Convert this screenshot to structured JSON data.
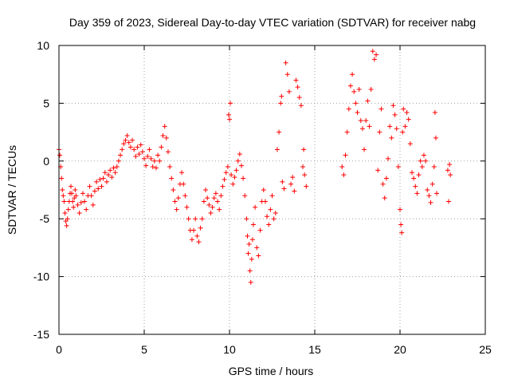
{
  "chart_data": {
    "type": "scatter",
    "title": "Day 359 of 2023, Sidereal Day-to-day VTEC variation (SDTVAR) for receiver nabg",
    "xlabel": "GPS time / hours",
    "ylabel": "SDTVAR / TECUs",
    "xlim": [
      0,
      25
    ],
    "ylim": [
      -15,
      10
    ],
    "x_ticks": [
      0,
      5,
      10,
      15,
      20,
      25
    ],
    "y_ticks": [
      -15,
      -10,
      -5,
      0,
      5,
      10
    ],
    "x_tick_labels": [
      "0",
      "5",
      "10",
      "15",
      "20",
      "25"
    ],
    "y_tick_labels": [
      "-15",
      "-10",
      "-5",
      "0",
      "5",
      "10"
    ],
    "grid": true,
    "marker": "+",
    "color": "#ff0000",
    "series": [
      {
        "name": "SDTVAR",
        "points": [
          [
            0.0,
            1.0
          ],
          [
            0.05,
            0.5
          ],
          [
            0.1,
            -0.5
          ],
          [
            0.15,
            -1.5
          ],
          [
            0.2,
            -2.5
          ],
          [
            0.25,
            -3.0
          ],
          [
            0.3,
            -3.5
          ],
          [
            0.35,
            -4.5
          ],
          [
            0.4,
            -5.2
          ],
          [
            0.45,
            -5.6
          ],
          [
            0.5,
            -5.0
          ],
          [
            0.55,
            -4.2
          ],
          [
            0.6,
            -3.5
          ],
          [
            0.65,
            -2.8
          ],
          [
            0.7,
            -2.2
          ],
          [
            0.75,
            -2.8
          ],
          [
            0.8,
            -3.5
          ],
          [
            0.85,
            -4.0
          ],
          [
            0.9,
            -3.2
          ],
          [
            0.95,
            -2.5
          ],
          [
            1.0,
            -3.0
          ],
          [
            1.1,
            -3.8
          ],
          [
            1.2,
            -4.5
          ],
          [
            1.3,
            -3.6
          ],
          [
            1.4,
            -2.8
          ],
          [
            1.5,
            -3.5
          ],
          [
            1.6,
            -4.2
          ],
          [
            1.7,
            -3.0
          ],
          [
            1.8,
            -2.2
          ],
          [
            1.9,
            -3.0
          ],
          [
            2.0,
            -3.8
          ],
          [
            2.1,
            -2.6
          ],
          [
            2.2,
            -1.8
          ],
          [
            2.3,
            -2.4
          ],
          [
            2.4,
            -1.6
          ],
          [
            2.5,
            -2.2
          ],
          [
            2.6,
            -1.5
          ],
          [
            2.7,
            -1.0
          ],
          [
            2.8,
            -1.8
          ],
          [
            2.9,
            -1.2
          ],
          [
            3.0,
            -0.8
          ],
          [
            3.1,
            -1.4
          ],
          [
            3.2,
            -0.6
          ],
          [
            3.3,
            -1.0
          ],
          [
            3.4,
            -0.5
          ],
          [
            3.5,
            0.0
          ],
          [
            3.6,
            0.5
          ],
          [
            3.7,
            1.0
          ],
          [
            3.8,
            1.5
          ],
          [
            3.9,
            1.8
          ],
          [
            4.0,
            2.2
          ],
          [
            4.1,
            1.6
          ],
          [
            4.2,
            1.2
          ],
          [
            4.3,
            1.8
          ],
          [
            4.4,
            1.0
          ],
          [
            4.5,
            0.4
          ],
          [
            4.6,
            1.2
          ],
          [
            4.7,
            0.6
          ],
          [
            4.8,
            1.4
          ],
          [
            4.9,
            0.8
          ],
          [
            5.0,
            0.2
          ],
          [
            5.1,
            -0.4
          ],
          [
            5.2,
            0.4
          ],
          [
            5.3,
            1.0
          ],
          [
            5.4,
            0.2
          ],
          [
            5.5,
            -0.5
          ],
          [
            5.6,
            0.0
          ],
          [
            5.7,
            -0.6
          ],
          [
            5.8,
            0.5
          ],
          [
            5.9,
            0.0
          ],
          [
            6.0,
            1.2
          ],
          [
            6.1,
            2.2
          ],
          [
            6.2,
            3.0
          ],
          [
            6.3,
            2.0
          ],
          [
            6.4,
            0.8
          ],
          [
            6.5,
            -0.5
          ],
          [
            6.6,
            -1.5
          ],
          [
            6.7,
            -2.5
          ],
          [
            6.8,
            -3.5
          ],
          [
            6.9,
            -4.2
          ],
          [
            7.0,
            -3.2
          ],
          [
            7.1,
            -2.0
          ],
          [
            7.2,
            -1.0
          ],
          [
            7.3,
            -2.0
          ],
          [
            7.4,
            -3.0
          ],
          [
            7.5,
            -4.0
          ],
          [
            7.6,
            -5.0
          ],
          [
            7.7,
            -6.0
          ],
          [
            7.8,
            -6.8
          ],
          [
            7.9,
            -6.0
          ],
          [
            8.0,
            -5.0
          ],
          [
            8.1,
            -6.5
          ],
          [
            8.2,
            -7.0
          ],
          [
            8.3,
            -5.8
          ],
          [
            8.4,
            -5.0
          ],
          [
            8.5,
            -3.5
          ],
          [
            8.6,
            -2.5
          ],
          [
            8.7,
            -3.2
          ],
          [
            8.8,
            -3.8
          ],
          [
            8.9,
            -4.5
          ],
          [
            9.0,
            -4.0
          ],
          [
            9.1,
            -3.2
          ],
          [
            9.2,
            -2.8
          ],
          [
            9.3,
            -3.5
          ],
          [
            9.4,
            -4.2
          ],
          [
            9.5,
            -3.0
          ],
          [
            9.6,
            -2.2
          ],
          [
            9.7,
            -1.6
          ],
          [
            9.8,
            -1.0
          ],
          [
            9.9,
            -0.5
          ],
          [
            9.95,
            4.0
          ],
          [
            10.0,
            3.6
          ],
          [
            10.05,
            5.0
          ],
          [
            10.1,
            -1.2
          ],
          [
            10.2,
            -2.0
          ],
          [
            10.3,
            -1.4
          ],
          [
            10.4,
            -0.8
          ],
          [
            10.5,
            0.0
          ],
          [
            10.6,
            0.6
          ],
          [
            10.7,
            -0.4
          ],
          [
            10.8,
            -1.5
          ],
          [
            10.9,
            -3.0
          ],
          [
            11.0,
            -5.0
          ],
          [
            11.05,
            -6.5
          ],
          [
            11.1,
            -8.0
          ],
          [
            11.15,
            -7.2
          ],
          [
            11.2,
            -9.5
          ],
          [
            11.25,
            -10.5
          ],
          [
            11.3,
            -8.5
          ],
          [
            11.35,
            -6.8
          ],
          [
            11.4,
            -5.5
          ],
          [
            11.5,
            -4.0
          ],
          [
            11.6,
            -7.5
          ],
          [
            11.7,
            -8.2
          ],
          [
            11.8,
            -6.0
          ],
          [
            11.9,
            -3.5
          ],
          [
            12.0,
            -2.5
          ],
          [
            12.1,
            -3.5
          ],
          [
            12.2,
            -4.8
          ],
          [
            12.3,
            -5.5
          ],
          [
            12.4,
            -4.2
          ],
          [
            12.5,
            -3.0
          ],
          [
            12.6,
            -5.0
          ],
          [
            12.7,
            -4.5
          ],
          [
            12.8,
            1.0
          ],
          [
            12.9,
            2.5
          ],
          [
            13.0,
            5.0
          ],
          [
            13.05,
            5.6
          ],
          [
            13.1,
            -1.8
          ],
          [
            13.2,
            -2.4
          ],
          [
            13.3,
            8.5
          ],
          [
            13.4,
            7.5
          ],
          [
            13.5,
            6.0
          ],
          [
            13.6,
            -2.0
          ],
          [
            13.7,
            -1.4
          ],
          [
            13.8,
            -2.6
          ],
          [
            13.9,
            7.0
          ],
          [
            14.0,
            6.4
          ],
          [
            14.1,
            5.5
          ],
          [
            14.2,
            4.8
          ],
          [
            14.3,
            -0.5
          ],
          [
            14.35,
            1.0
          ],
          [
            14.4,
            -1.2
          ],
          [
            14.5,
            -2.2
          ],
          [
            16.6,
            -0.5
          ],
          [
            16.7,
            -1.2
          ],
          [
            16.8,
            0.5
          ],
          [
            16.9,
            2.5
          ],
          [
            17.0,
            4.5
          ],
          [
            17.1,
            6.5
          ],
          [
            17.2,
            7.5
          ],
          [
            17.3,
            6.0
          ],
          [
            17.4,
            5.0
          ],
          [
            17.5,
            4.2
          ],
          [
            17.6,
            6.2
          ],
          [
            17.7,
            3.5
          ],
          [
            17.8,
            2.8
          ],
          [
            17.9,
            1.0
          ],
          [
            18.0,
            3.5
          ],
          [
            18.1,
            5.2
          ],
          [
            18.2,
            3.0
          ],
          [
            18.3,
            6.2
          ],
          [
            18.4,
            9.5
          ],
          [
            18.5,
            8.8
          ],
          [
            18.6,
            9.2
          ],
          [
            18.7,
            -0.8
          ],
          [
            18.8,
            2.5
          ],
          [
            18.9,
            4.5
          ],
          [
            19.0,
            -2.0
          ],
          [
            19.1,
            -3.2
          ],
          [
            19.2,
            -1.5
          ],
          [
            19.3,
            0.2
          ],
          [
            19.4,
            3.0
          ],
          [
            19.5,
            2.0
          ],
          [
            19.6,
            4.8
          ],
          [
            19.7,
            4.0
          ],
          [
            19.8,
            2.8
          ],
          [
            19.9,
            -0.5
          ],
          [
            20.0,
            -4.2
          ],
          [
            20.05,
            -5.5
          ],
          [
            20.1,
            -6.2
          ],
          [
            20.15,
            2.5
          ],
          [
            20.2,
            4.5
          ],
          [
            20.3,
            3.0
          ],
          [
            20.4,
            4.2
          ],
          [
            20.5,
            3.6
          ],
          [
            20.6,
            1.5
          ],
          [
            20.7,
            -1.0
          ],
          [
            20.8,
            -1.5
          ],
          [
            20.9,
            -2.2
          ],
          [
            21.0,
            -2.8
          ],
          [
            21.1,
            -1.2
          ],
          [
            21.2,
            0.0
          ],
          [
            21.3,
            -0.5
          ],
          [
            21.4,
            0.5
          ],
          [
            21.5,
            0.0
          ],
          [
            21.6,
            -2.5
          ],
          [
            21.7,
            -3.0
          ],
          [
            21.8,
            -3.6
          ],
          [
            21.9,
            -2.0
          ],
          [
            22.0,
            -0.5
          ],
          [
            22.05,
            4.2
          ],
          [
            22.1,
            2.0
          ],
          [
            22.15,
            -2.8
          ],
          [
            22.8,
            -0.8
          ],
          [
            22.85,
            -3.5
          ],
          [
            22.9,
            -0.3
          ],
          [
            22.95,
            -1.2
          ]
        ]
      }
    ]
  }
}
